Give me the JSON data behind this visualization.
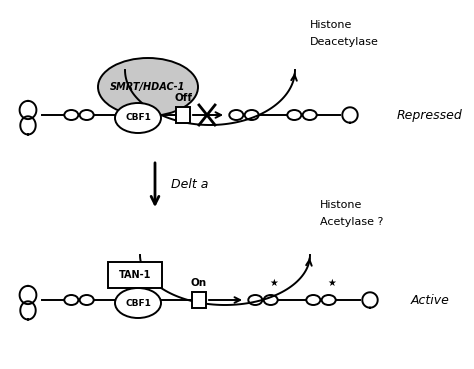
{
  "background_color": "#ffffff",
  "top_label": "Repressed",
  "bottom_label": "Active",
  "middle_label": "Delt a",
  "top_enzyme_label1": "Histone",
  "top_enzyme_label2": "Deacetylase",
  "bottom_enzyme_label1": "Histone",
  "bottom_enzyme_label2": "Acetylase ?",
  "top_complex_label1": "SMRT/HDAC-1",
  "top_cbf1_label": "CBF1",
  "bottom_tan1_label": "TAN-1",
  "bottom_cbf1_label": "CBF1",
  "top_off_label": "Off",
  "bottom_on_label": "On",
  "figsize": [
    4.74,
    3.69
  ],
  "dpi": 100
}
